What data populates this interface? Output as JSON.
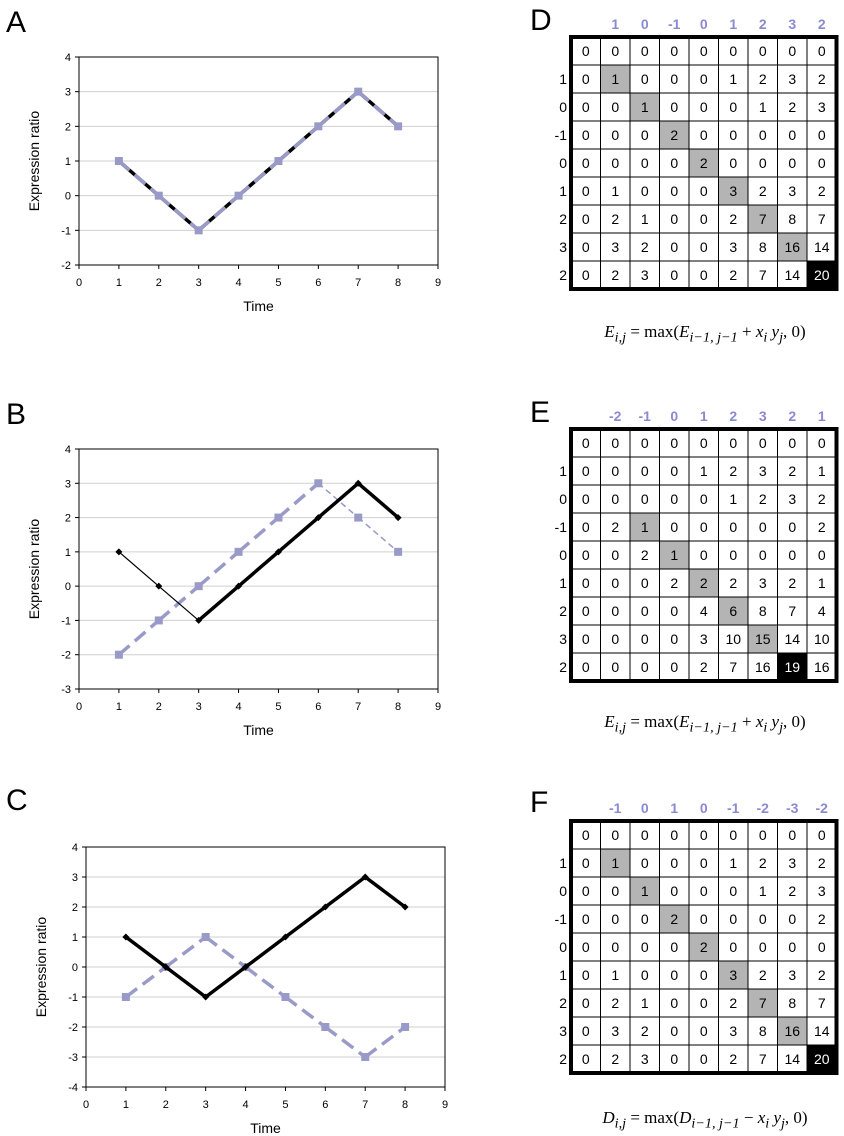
{
  "colors": {
    "series_primary": "#000000",
    "series_secondary": "#9a9ac8",
    "column_header": "#8a8ad0",
    "highlight_cell": "#b4b4b4",
    "max_cell": "#000000",
    "grid": "#cfcfcf"
  },
  "panels": {
    "A": {
      "letter": "A",
      "formula": {
        "lhs": "E",
        "lhs_sub": "i,j",
        "eq": "= max(",
        "term_a": "E",
        "term_a_sub": "i−1, j−1",
        "op": "+",
        "term_b": "x",
        "term_b_sub": "i",
        "term_c": "y",
        "term_c_sub": "j",
        "tail": ", 0)"
      }
    },
    "B": {
      "letter": "B"
    },
    "C": {
      "letter": "C"
    },
    "D": {
      "letter": "D"
    },
    "E": {
      "letter": "E"
    },
    "F": {
      "letter": "F"
    }
  },
  "chart_data": [
    {
      "panel": "A",
      "type": "line",
      "xlabel": "Time",
      "ylabel": "Expression ratio",
      "xlim": [
        0,
        9
      ],
      "ylim": [
        -2,
        4
      ],
      "xticks": [
        "0",
        "1",
        "2",
        "3",
        "4",
        "5",
        "6",
        "7",
        "8",
        "9"
      ],
      "yticks": [
        "-2",
        "-1",
        "0",
        "1",
        "2",
        "3",
        "4"
      ],
      "grid": "horizontal",
      "series": [
        {
          "x": [
            1,
            2,
            3,
            4,
            5,
            6,
            7,
            8
          ],
          "values": [
            1,
            0,
            -1,
            0,
            1,
            2,
            3,
            2
          ],
          "style": "solid-thick",
          "color": "#000000"
        },
        {
          "x": [
            1,
            2,
            3,
            4,
            5,
            6,
            7,
            8
          ],
          "values": [
            1,
            0,
            -1,
            0,
            1,
            2,
            3,
            2
          ],
          "style": "dashed",
          "color": "#9a9ac8"
        }
      ]
    },
    {
      "panel": "B",
      "type": "line",
      "xlabel": "Time",
      "ylabel": "Expression ratio",
      "xlim": [
        0,
        9
      ],
      "ylim": [
        -3,
        4
      ],
      "xticks": [
        "0",
        "1",
        "2",
        "3",
        "4",
        "5",
        "6",
        "7",
        "8",
        "9"
      ],
      "yticks": [
        "-3",
        "-2",
        "-1",
        "0",
        "1",
        "2",
        "3",
        "4"
      ],
      "grid": "horizontal",
      "series": [
        {
          "x": [
            1,
            2,
            3,
            4,
            5,
            6,
            7,
            8
          ],
          "values": [
            1,
            0,
            -1,
            0,
            1,
            2,
            3,
            2
          ],
          "style": "solid-thick",
          "color": "#000000"
        },
        {
          "x": [
            1,
            2,
            3,
            4,
            5,
            6,
            7,
            8
          ],
          "values": [
            -2,
            -1,
            0,
            1,
            2,
            3,
            2,
            1
          ],
          "style": "dashed",
          "color": "#9a9ac8"
        }
      ]
    },
    {
      "panel": "C",
      "type": "line",
      "xlabel": "Time",
      "ylabel": "Expression ratio",
      "xlim": [
        0,
        9
      ],
      "ylim": [
        -4,
        4
      ],
      "xticks": [
        "0",
        "1",
        "2",
        "3",
        "4",
        "5",
        "6",
        "7",
        "8",
        "9"
      ],
      "yticks": [
        "-4",
        "-3",
        "-2",
        "-1",
        "0",
        "1",
        "2",
        "3",
        "4"
      ],
      "grid": "horizontal",
      "series": [
        {
          "x": [
            1,
            2,
            3,
            4,
            5,
            6,
            7,
            8
          ],
          "values": [
            1,
            0,
            -1,
            0,
            1,
            2,
            3,
            2
          ],
          "style": "solid-thick",
          "color": "#000000"
        },
        {
          "x": [
            1,
            2,
            3,
            4,
            5,
            6,
            7,
            8
          ],
          "values": [
            -1,
            0,
            1,
            0,
            -1,
            -2,
            -3,
            -2
          ],
          "style": "dashed",
          "color": "#9a9ac8"
        }
      ]
    },
    {
      "panel": "D",
      "type": "table",
      "col_header": [
        "1",
        "0",
        "-1",
        "0",
        "1",
        "2",
        "3",
        "2"
      ],
      "row_header": [
        "",
        "1",
        "0",
        "-1",
        "0",
        "1",
        "2",
        "3",
        "2"
      ],
      "cells": [
        [
          "0",
          "0",
          "0",
          "0",
          "0",
          "0",
          "0",
          "0",
          "0"
        ],
        [
          "0",
          "1",
          "0",
          "0",
          "0",
          "1",
          "2",
          "3",
          "2"
        ],
        [
          "0",
          "0",
          "1",
          "0",
          "0",
          "0",
          "1",
          "2",
          "3"
        ],
        [
          "0",
          "0",
          "0",
          "2",
          "0",
          "0",
          "0",
          "0",
          "0"
        ],
        [
          "0",
          "0",
          "0",
          "0",
          "2",
          "0",
          "0",
          "0",
          "0"
        ],
        [
          "0",
          "1",
          "0",
          "0",
          "0",
          "3",
          "2",
          "3",
          "2"
        ],
        [
          "0",
          "2",
          "1",
          "0",
          "0",
          "2",
          "7",
          "8",
          "7"
        ],
        [
          "0",
          "3",
          "2",
          "0",
          "0",
          "3",
          "8",
          "16",
          "14"
        ],
        [
          "0",
          "2",
          "3",
          "0",
          "0",
          "2",
          "7",
          "14",
          "20"
        ]
      ],
      "highlight": [
        [
          1,
          1
        ],
        [
          2,
          2
        ],
        [
          3,
          3
        ],
        [
          4,
          4
        ],
        [
          5,
          5
        ],
        [
          6,
          6
        ],
        [
          7,
          7
        ]
      ],
      "max_cell": [
        8,
        8
      ],
      "formula": {
        "lhs": "E",
        "lhs_sub": "i,j",
        "eq": "= max(",
        "term_a": "E",
        "term_a_sub": "i−1, j−1",
        "op": "+",
        "term_b": "x",
        "term_b_sub": "i",
        "term_c": "y",
        "term_c_sub": "j",
        "tail": ", 0)"
      }
    },
    {
      "panel": "E",
      "type": "table",
      "col_header": [
        "-2",
        "-1",
        "0",
        "1",
        "2",
        "3",
        "2",
        "1"
      ],
      "row_header": [
        "",
        "1",
        "0",
        "-1",
        "0",
        "1",
        "2",
        "3",
        "2"
      ],
      "cells": [
        [
          "0",
          "0",
          "0",
          "0",
          "0",
          "0",
          "0",
          "0",
          "0"
        ],
        [
          "0",
          "0",
          "0",
          "0",
          "1",
          "2",
          "3",
          "2",
          "1"
        ],
        [
          "0",
          "0",
          "0",
          "0",
          "0",
          "1",
          "2",
          "3",
          "2"
        ],
        [
          "0",
          "2",
          "1",
          "0",
          "0",
          "0",
          "0",
          "0",
          "2"
        ],
        [
          "0",
          "0",
          "2",
          "1",
          "0",
          "0",
          "0",
          "0",
          "0"
        ],
        [
          "0",
          "0",
          "0",
          "2",
          "2",
          "2",
          "3",
          "2",
          "1"
        ],
        [
          "0",
          "0",
          "0",
          "0",
          "4",
          "6",
          "8",
          "7",
          "4"
        ],
        [
          "0",
          "0",
          "0",
          "0",
          "3",
          "10",
          "15",
          "14",
          "10"
        ],
        [
          "0",
          "0",
          "0",
          "0",
          "2",
          "7",
          "16",
          "19",
          "16"
        ]
      ],
      "highlight": [
        [
          3,
          2
        ],
        [
          4,
          3
        ],
        [
          5,
          4
        ],
        [
          6,
          5
        ],
        [
          7,
          6
        ]
      ],
      "max_cell": [
        8,
        7
      ],
      "formula": {
        "lhs": "E",
        "lhs_sub": "i,j",
        "eq": "= max(",
        "term_a": "E",
        "term_a_sub": "i−1, j−1",
        "op": "+",
        "term_b": "x",
        "term_b_sub": "i",
        "term_c": "y",
        "term_c_sub": "j",
        "tail": ", 0)"
      }
    },
    {
      "panel": "F",
      "type": "table",
      "col_header": [
        "-1",
        "0",
        "1",
        "0",
        "-1",
        "-2",
        "-3",
        "-2"
      ],
      "row_header": [
        "",
        "1",
        "0",
        "-1",
        "0",
        "1",
        "2",
        "3",
        "2"
      ],
      "cells": [
        [
          "0",
          "0",
          "0",
          "0",
          "0",
          "0",
          "0",
          "0",
          "0"
        ],
        [
          "0",
          "1",
          "0",
          "0",
          "0",
          "1",
          "2",
          "3",
          "2"
        ],
        [
          "0",
          "0",
          "1",
          "0",
          "0",
          "0",
          "1",
          "2",
          "3"
        ],
        [
          "0",
          "0",
          "0",
          "2",
          "0",
          "0",
          "0",
          "0",
          "2"
        ],
        [
          "0",
          "0",
          "0",
          "0",
          "2",
          "0",
          "0",
          "0",
          "0"
        ],
        [
          "0",
          "1",
          "0",
          "0",
          "0",
          "3",
          "2",
          "3",
          "2"
        ],
        [
          "0",
          "2",
          "1",
          "0",
          "0",
          "2",
          "7",
          "8",
          "7"
        ],
        [
          "0",
          "3",
          "2",
          "0",
          "0",
          "3",
          "8",
          "16",
          "14"
        ],
        [
          "0",
          "2",
          "3",
          "0",
          "0",
          "2",
          "7",
          "14",
          "20"
        ]
      ],
      "highlight": [
        [
          1,
          1
        ],
        [
          2,
          2
        ],
        [
          3,
          3
        ],
        [
          4,
          4
        ],
        [
          5,
          5
        ],
        [
          6,
          6
        ],
        [
          7,
          7
        ]
      ],
      "max_cell": [
        8,
        8
      ],
      "formula": {
        "lhs": "D",
        "lhs_sub": "i,j",
        "eq": "= max(",
        "term_a": "D",
        "term_a_sub": "i−1, j−1",
        "op": "−",
        "term_b": "x",
        "term_b_sub": "i",
        "term_c": "y",
        "term_c_sub": "j",
        "tail": ", 0)"
      }
    }
  ]
}
